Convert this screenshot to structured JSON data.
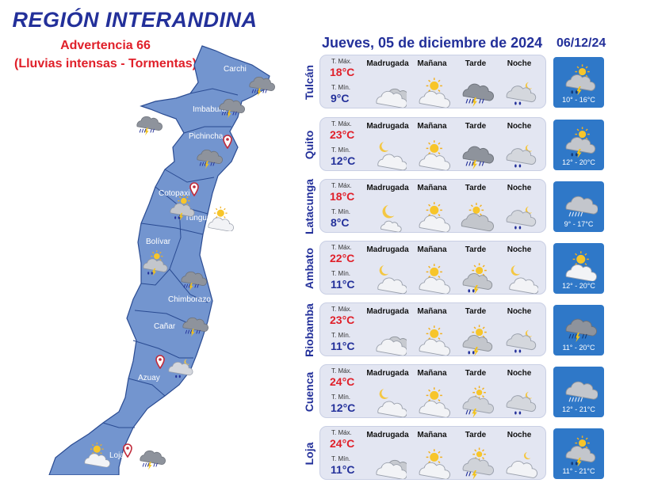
{
  "header": {
    "title": "REGIÓN INTERANDINA",
    "advisory": "Advertencia 66",
    "advisory_detail": "(Lluvias intensas - Tormentas)"
  },
  "forecast_date": "Jueves, 05 de diciembre de 2024",
  "next_date": "06/12/24",
  "labels": {
    "tmax": "T. Máx.",
    "tmin": "T. Mín.",
    "periods": [
      "Madrugada",
      "Mañana",
      "Tarde",
      "Noche"
    ]
  },
  "map": {
    "provinces": [
      "Carchi",
      "Imbabura",
      "Pichincha",
      "Cotopaxi",
      "Tungurahua",
      "Bolívar",
      "Chimborazo",
      "Cañar",
      "Azuay",
      "Loja"
    ],
    "colors": {
      "fill": "#7395cf",
      "stroke": "#2a4b92"
    }
  },
  "cities": [
    {
      "name": "Tulcán",
      "tmax": "18°C",
      "tmin": "9°C",
      "icons": [
        "cloudy-icon",
        "partly-cloudy-icon",
        "storm-icon",
        "rain-night-icon"
      ],
      "next_icon": "rain-sun-icon",
      "next_range": "10° - 16°C"
    },
    {
      "name": "Quito",
      "tmax": "23°C",
      "tmin": "12°C",
      "icons": [
        "partly-cloudy-night-icon",
        "partly-cloudy-icon",
        "storm-icon",
        "rain-night-icon"
      ],
      "next_icon": "rain-sun-icon",
      "next_range": "12° - 20°C"
    },
    {
      "name": "Latacunga",
      "tmax": "18°C",
      "tmin": "8°C",
      "icons": [
        "moon-icon",
        "partly-cloudy-icon",
        "overcast-icon",
        "rain-night-icon"
      ],
      "next_icon": "heavy-rain-icon",
      "next_range": "9° - 17°C"
    },
    {
      "name": "Ambato",
      "tmax": "22°C",
      "tmin": "11°C",
      "icons": [
        "partly-cloudy-night-icon",
        "partly-cloudy-icon",
        "rain-sun-icon",
        "partly-cloudy-night-icon"
      ],
      "next_icon": "partly-cloudy-icon",
      "next_range": "12° - 20°C"
    },
    {
      "name": "Riobamba",
      "tmax": "23°C",
      "tmin": "11°C",
      "icons": [
        "cloudy-icon",
        "partly-cloudy-icon",
        "rain-sun-icon",
        "rain-night-icon"
      ],
      "next_icon": "storm-icon",
      "next_range": "11° - 20°C"
    },
    {
      "name": "Cuenca",
      "tmax": "24°C",
      "tmin": "12°C",
      "icons": [
        "partly-cloudy-night-icon",
        "partly-cloudy-icon",
        "rain-cloud-icon",
        "rain-night-icon"
      ],
      "next_icon": "heavy-rain-icon",
      "next_range": "12° - 21°C"
    },
    {
      "name": "Loja",
      "tmax": "24°C",
      "tmin": "11°C",
      "icons": [
        "cloudy-icon",
        "partly-cloudy-icon",
        "rain-cloud-icon",
        "cloudy-night-icon"
      ],
      "next_icon": "rain-sun-icon",
      "next_range": "11° - 21°C"
    }
  ]
}
